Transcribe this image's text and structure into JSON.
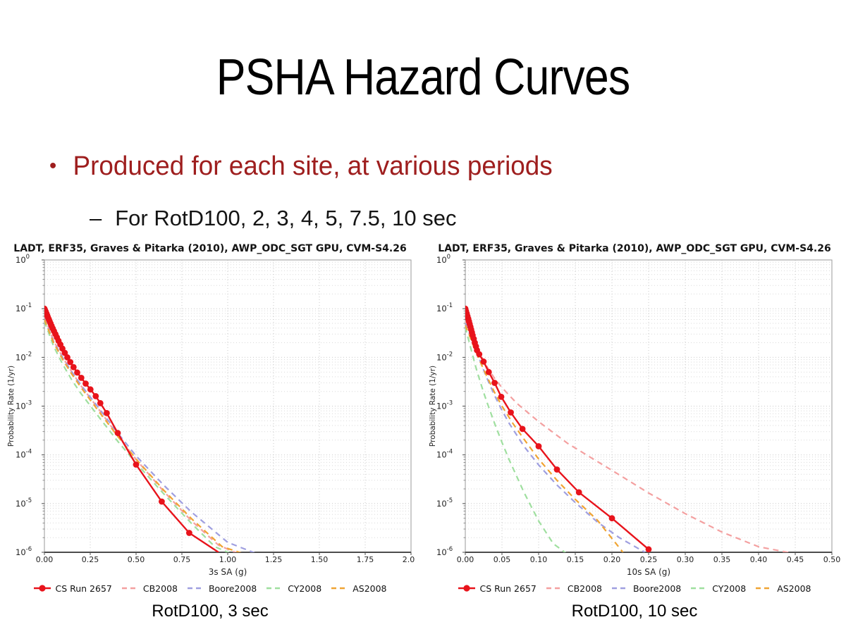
{
  "slide": {
    "title": "PSHA Hazard Curves",
    "bullet_glyph": "•",
    "bullet": "Produced for each site, at various periods",
    "sub_bullet_glyph": "–",
    "sub_bullet": "For RotD100, 2, 3, 4, 5, 7.5, 10 sec"
  },
  "captions": [
    "RotD100, 3 sec",
    "RotD100, 10 sec"
  ],
  "colors": {
    "bullet_red": "#9e1e1e",
    "cs_red": "#e8131b",
    "cb_pink": "#f4a0a0",
    "boore_blue": "#9f9fe0",
    "cy_green": "#9fdf9f",
    "as_orange": "#f0a433",
    "grid_major": "#c9c9c9",
    "grid_minor": "#dadada",
    "frame": "#999999",
    "axis_dark": "#4d4d4d"
  },
  "chart_data": [
    {
      "type": "line",
      "title": "LADT, ERF35, Graves & Pitarka (2010), AWP_ODC_SGT GPU, CVM-S4.26",
      "xlabel": "3s SA (g)",
      "ylabel": "Probability Rate (1/yr)",
      "xlim": [
        0,
        2.0
      ],
      "xticks": [
        0,
        0.25,
        0.5,
        0.75,
        1.0,
        1.25,
        1.5,
        1.75,
        2.0
      ],
      "xtick_labels": [
        "0.00",
        "0.25",
        "0.50",
        "0.75",
        "1.00",
        "1.25",
        "1.50",
        "1.75",
        "2.00"
      ],
      "ytick_exponents": [
        0,
        -1,
        -2,
        -3,
        -4,
        -5,
        -6
      ],
      "grid": true,
      "legend_position": "bottom",
      "series": [
        {
          "name": "CS Run 2657",
          "color": "#e8131b",
          "style": "solid",
          "marker": "circle",
          "points": [
            [
              0,
              0.1
            ],
            [
              0.0035,
              0.093
            ],
            [
              0.007,
              0.0865
            ],
            [
              0.011,
              0.0795
            ],
            [
              0.015,
              0.073
            ],
            [
              0.019,
              0.067
            ],
            [
              0.0235,
              0.061
            ],
            [
              0.028,
              0.0555
            ],
            [
              0.033,
              0.05
            ],
            [
              0.039,
              0.0445
            ],
            [
              0.045,
              0.0395
            ],
            [
              0.052,
              0.0346
            ],
            [
              0.06,
              0.03
            ],
            [
              0.068,
              0.0258
            ],
            [
              0.077,
              0.0219
            ],
            [
              0.087,
              0.0184
            ],
            [
              0.098,
              0.0152
            ],
            [
              0.111,
              0.0124
            ],
            [
              0.125,
              0.01
            ],
            [
              0.141,
              0.008
            ],
            [
              0.159,
              0.0063
            ],
            [
              0.179,
              0.0049
            ],
            [
              0.201,
              0.0038
            ],
            [
              0.225,
              0.0029
            ],
            [
              0.251,
              0.0022
            ],
            [
              0.28,
              0.0016
            ],
            [
              0.305,
              0.00115
            ],
            [
              0.34,
              0.00072
            ],
            [
              0.4,
              0.00028
            ],
            [
              0.5,
              6.3e-05
            ],
            [
              0.64,
              1.1e-05
            ],
            [
              0.79,
              2.5e-06
            ],
            [
              0.95,
              1e-06
            ]
          ]
        },
        {
          "name": "CB2008",
          "color": "#f4a0a0",
          "style": "dashed",
          "points": [
            [
              0,
              0.07
            ],
            [
              0.05,
              0.022
            ],
            [
              0.1,
              0.01
            ],
            [
              0.15,
              0.005
            ],
            [
              0.2,
              0.0026
            ],
            [
              0.3,
              0.00083
            ],
            [
              0.4,
              0.00025
            ],
            [
              0.5,
              8e-05
            ],
            [
              0.65,
              1.8e-05
            ],
            [
              0.8,
              4.5e-06
            ],
            [
              0.95,
              1.4e-06
            ],
            [
              1.07,
              9e-07
            ]
          ]
        },
        {
          "name": "Boore2008",
          "color": "#9f9fe0",
          "style": "dashed",
          "points": [
            [
              0,
              0.062
            ],
            [
              0.05,
              0.021
            ],
            [
              0.1,
              0.0098
            ],
            [
              0.15,
              0.005
            ],
            [
              0.2,
              0.0027
            ],
            [
              0.3,
              0.00088
            ],
            [
              0.4,
              0.00028
            ],
            [
              0.5,
              9.5e-05
            ],
            [
              0.65,
              2.4e-05
            ],
            [
              0.8,
              6.8e-06
            ],
            [
              1.0,
              1.6e-06
            ],
            [
              1.17,
              9e-07
            ]
          ]
        },
        {
          "name": "CY2008",
          "color": "#9fdf9f",
          "style": "dashed",
          "points": [
            [
              0,
              0.055
            ],
            [
              0.05,
              0.017
            ],
            [
              0.1,
              0.0072
            ],
            [
              0.15,
              0.0034
            ],
            [
              0.2,
              0.0018
            ],
            [
              0.3,
              0.00058
            ],
            [
              0.4,
              0.00019
            ],
            [
              0.5,
              6.8e-05
            ],
            [
              0.65,
              1.6e-05
            ],
            [
              0.8,
              4e-06
            ],
            [
              0.93,
              1.3e-06
            ],
            [
              1.03,
              9e-07
            ]
          ]
        },
        {
          "name": "AS2008",
          "color": "#f0a433",
          "style": "dashed",
          "points": [
            [
              0,
              0.06
            ],
            [
              0.05,
              0.02
            ],
            [
              0.1,
              0.009
            ],
            [
              0.15,
              0.0045
            ],
            [
              0.2,
              0.0024
            ],
            [
              0.3,
              0.00075
            ],
            [
              0.4,
              0.00024
            ],
            [
              0.5,
              8.2e-05
            ],
            [
              0.65,
              1.9e-05
            ],
            [
              0.8,
              5e-06
            ],
            [
              0.97,
              1.3e-06
            ],
            [
              1.1,
              9e-07
            ]
          ]
        }
      ]
    },
    {
      "type": "line",
      "title": "LADT, ERF35, Graves & Pitarka (2010), AWP_ODC_SGT GPU, CVM-S4.26",
      "xlabel": "10s SA (g)",
      "ylabel": "Probability Rate (1/yr)",
      "xlim": [
        0,
        0.5
      ],
      "xticks": [
        0,
        0.05,
        0.1,
        0.15,
        0.2,
        0.25,
        0.3,
        0.35,
        0.4,
        0.45,
        0.5
      ],
      "xtick_labels": [
        "0.00",
        "0.05",
        "0.10",
        "0.15",
        "0.20",
        "0.25",
        "0.30",
        "0.35",
        "0.40",
        "0.45",
        "0.50"
      ],
      "ytick_exponents": [
        0,
        -1,
        -2,
        -3,
        -4,
        -5,
        -6
      ],
      "grid": true,
      "legend_position": "bottom",
      "series": [
        {
          "name": "CS Run 2657",
          "color": "#e8131b",
          "style": "solid",
          "marker": "circle",
          "points": [
            [
              0,
              0.1
            ],
            [
              0.001,
              0.089
            ],
            [
              0.002,
              0.079
            ],
            [
              0.003,
              0.07
            ],
            [
              0.004,
              0.062
            ],
            [
              0.005,
              0.055
            ],
            [
              0.006,
              0.0485
            ],
            [
              0.007,
              0.0425
            ],
            [
              0.008,
              0.0372
            ],
            [
              0.009,
              0.0325
            ],
            [
              0.01,
              0.0284
            ],
            [
              0.0115,
              0.024
            ],
            [
              0.013,
              0.02
            ],
            [
              0.0145,
              0.0168
            ],
            [
              0.016,
              0.014
            ],
            [
              0.019,
              0.0116
            ],
            [
              0.025,
              0.0082
            ],
            [
              0.032,
              0.005
            ],
            [
              0.04,
              0.003
            ],
            [
              0.049,
              0.00155
            ],
            [
              0.062,
              0.00074
            ],
            [
              0.078,
              0.00034
            ],
            [
              0.1,
              0.00015
            ],
            [
              0.125,
              5e-05
            ],
            [
              0.155,
              1.7e-05
            ],
            [
              0.2,
              5e-06
            ],
            [
              0.25,
              1.15e-06
            ]
          ]
        },
        {
          "name": "CB2008",
          "color": "#f4a0a0",
          "style": "dashed",
          "points": [
            [
              0,
              0.055
            ],
            [
              0.01,
              0.025
            ],
            [
              0.02,
              0.012
            ],
            [
              0.03,
              0.0063
            ],
            [
              0.04,
              0.0037
            ],
            [
              0.05,
              0.0024
            ],
            [
              0.07,
              0.00115
            ],
            [
              0.1,
              0.00048
            ],
            [
              0.14,
              0.00017
            ],
            [
              0.2,
              4.8e-05
            ],
            [
              0.25,
              1.65e-05
            ],
            [
              0.3,
              6.2e-06
            ],
            [
              0.35,
              2.6e-06
            ],
            [
              0.4,
              1.3e-06
            ],
            [
              0.455,
              9e-07
            ]
          ]
        },
        {
          "name": "Boore2008",
          "color": "#9f9fe0",
          "style": "dashed",
          "points": [
            [
              0,
              0.05
            ],
            [
              0.005,
              0.033
            ],
            [
              0.01,
              0.021
            ],
            [
              0.015,
              0.0135
            ],
            [
              0.02,
              0.0086
            ],
            [
              0.025,
              0.0055
            ],
            [
              0.03,
              0.0036
            ],
            [
              0.04,
              0.00165
            ],
            [
              0.05,
              0.00082
            ],
            [
              0.06,
              0.00044
            ],
            [
              0.08,
              0.00015
            ],
            [
              0.1,
              6.2e-05
            ],
            [
              0.125,
              2.4e-05
            ],
            [
              0.15,
              1.05e-05
            ],
            [
              0.18,
              4.2e-06
            ],
            [
              0.21,
              2e-06
            ],
            [
              0.245,
              1e-06
            ]
          ]
        },
        {
          "name": "CY2008",
          "color": "#9fdf9f",
          "style": "dashed",
          "points": [
            [
              0,
              0.042
            ],
            [
              0.003,
              0.028
            ],
            [
              0.006,
              0.019
            ],
            [
              0.009,
              0.0125
            ],
            [
              0.012,
              0.0085
            ],
            [
              0.015,
              0.0058
            ],
            [
              0.02,
              0.0033
            ],
            [
              0.025,
              0.0019
            ],
            [
              0.03,
              0.00115
            ],
            [
              0.04,
              0.00044
            ],
            [
              0.05,
              0.00018
            ],
            [
              0.06,
              7.8e-05
            ],
            [
              0.08,
              1.7e-05
            ],
            [
              0.1,
              4.4e-06
            ],
            [
              0.12,
              1.5e-06
            ],
            [
              0.14,
              9e-07
            ]
          ]
        },
        {
          "name": "AS2008",
          "color": "#f0a433",
          "style": "dashed",
          "points": [
            [
              0,
              0.046
            ],
            [
              0.005,
              0.03
            ],
            [
              0.01,
              0.019
            ],
            [
              0.015,
              0.0125
            ],
            [
              0.02,
              0.0083
            ],
            [
              0.03,
              0.0039
            ],
            [
              0.04,
              0.0019
            ],
            [
              0.05,
              0.001
            ],
            [
              0.065,
              0.00044
            ],
            [
              0.08,
              0.00021
            ],
            [
              0.1,
              8.2e-05
            ],
            [
              0.125,
              3e-05
            ],
            [
              0.15,
              1.22e-05
            ],
            [
              0.18,
              4.6e-06
            ],
            [
              0.215,
              1e-06
            ]
          ]
        }
      ]
    }
  ]
}
